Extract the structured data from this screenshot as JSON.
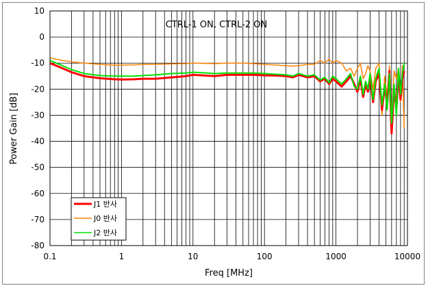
{
  "chart_data": {
    "type": "line",
    "title": "",
    "annotation": "CTRL-1 ON, CTRL-2 ON",
    "xlabel": "Freq [MHz]",
    "ylabel": "Power Gain [dB]",
    "xscale": "log",
    "xlim": [
      0.1,
      10000
    ],
    "ylim": [
      -80,
      10
    ],
    "x_ticks": [
      "0.1",
      "1",
      "10",
      "100",
      "1000",
      "10000"
    ],
    "y_ticks": [
      "10",
      "0",
      "-10",
      "-20",
      "-30",
      "-40",
      "-50",
      "-60",
      "-70",
      "-80"
    ],
    "grid": true,
    "legend_position": "bottom-left",
    "series": [
      {
        "name": "J1 반사",
        "color": "#ff0000",
        "x": [
          0.1,
          0.15,
          0.2,
          0.3,
          0.5,
          0.8,
          1,
          1.5,
          2,
          3,
          5,
          8,
          10,
          20,
          30,
          50,
          70,
          100,
          150,
          200,
          250,
          300,
          400,
          500,
          600,
          700,
          800,
          900,
          1000,
          1200,
          1400,
          1600,
          1800,
          2000,
          2200,
          2400,
          2600,
          2800,
          3000,
          3300,
          3600,
          4000,
          4400,
          4800,
          5200,
          5600,
          6000,
          6500,
          7000,
          7500,
          8000,
          8500,
          9000
        ],
        "values": [
          -10,
          -12,
          -13.5,
          -15,
          -15.8,
          -16.2,
          -16.3,
          -16.2,
          -16,
          -16,
          -15.5,
          -15,
          -14.5,
          -15,
          -14.5,
          -14.5,
          -14.5,
          -14.7,
          -14.8,
          -15,
          -15.5,
          -14.5,
          -15.5,
          -15,
          -17,
          -16,
          -18,
          -16,
          -17,
          -19,
          -17,
          -15,
          -18,
          -21,
          -16,
          -23,
          -18,
          -21,
          -15,
          -25,
          -17,
          -14,
          -28,
          -19,
          -26,
          -13,
          -37,
          -20,
          -27,
          -15,
          -24,
          -16,
          -13
        ]
      },
      {
        "name": "J0 반사",
        "color": "#ff8000",
        "x": [
          0.1,
          0.15,
          0.2,
          0.3,
          0.5,
          0.8,
          1,
          1.5,
          2,
          3,
          5,
          8,
          10,
          20,
          30,
          50,
          70,
          100,
          150,
          200,
          250,
          300,
          400,
          500,
          600,
          700,
          800,
          900,
          1000,
          1200,
          1400,
          1600,
          1800,
          2000,
          2200,
          2400,
          2600,
          2800,
          3000,
          3300,
          3600,
          4000,
          4400,
          4800,
          5200,
          5600,
          6000,
          6500,
          7000,
          7500,
          8000,
          8500,
          9000
        ],
        "values": [
          -8,
          -9,
          -9.5,
          -10,
          -10.5,
          -10.8,
          -10.8,
          -10.7,
          -10.5,
          -10.5,
          -10.3,
          -10.2,
          -10,
          -10.2,
          -10,
          -10,
          -10.2,
          -10.5,
          -10.8,
          -11,
          -11.2,
          -11,
          -10.5,
          -10.5,
          -9,
          -10,
          -8.5,
          -10,
          -9,
          -10,
          -13,
          -12,
          -15,
          -12,
          -10,
          -16,
          -14,
          -11,
          -13,
          -20,
          -12,
          -10,
          -30,
          -15,
          -23,
          -11,
          -32,
          -13,
          -16,
          -12,
          -25,
          -11,
          -35
        ]
      },
      {
        "name": "J2 반사",
        "color": "#00e000",
        "x": [
          0.1,
          0.15,
          0.2,
          0.3,
          0.5,
          0.8,
          1,
          1.5,
          2,
          3,
          5,
          8,
          10,
          20,
          30,
          50,
          70,
          100,
          150,
          200,
          250,
          300,
          400,
          500,
          600,
          700,
          800,
          900,
          1000,
          1200,
          1400,
          1600,
          1800,
          2000,
          2200,
          2400,
          2600,
          2800,
          3000,
          3300,
          3600,
          4000,
          4400,
          4800,
          5200,
          5600,
          6000,
          6500,
          7000,
          7500,
          8000,
          8500,
          9000
        ],
        "values": [
          -9,
          -11,
          -12.5,
          -14,
          -14.8,
          -15,
          -15,
          -15,
          -14.8,
          -14.5,
          -14,
          -13.8,
          -13.5,
          -14,
          -13.8,
          -13.8,
          -13.8,
          -14,
          -14.3,
          -14.5,
          -15,
          -14,
          -15,
          -14.5,
          -16.5,
          -15.5,
          -17.5,
          -15,
          -16,
          -18,
          -16,
          -14,
          -19,
          -20,
          -15,
          -22,
          -17,
          -20,
          -14,
          -24,
          -16,
          -12,
          -26,
          -18,
          -28,
          -14,
          -33,
          -18,
          -30,
          -12,
          -22,
          -14,
          -10
        ]
      }
    ]
  }
}
